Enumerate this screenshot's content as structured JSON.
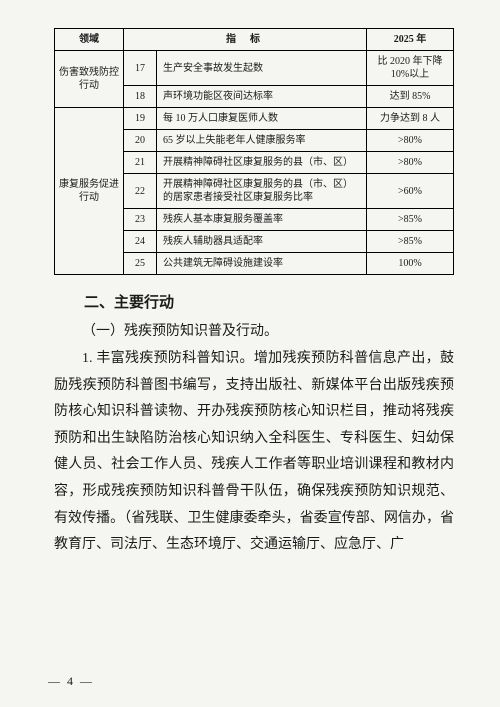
{
  "table": {
    "headers": [
      "领域",
      "指标",
      "2025 年"
    ],
    "rows": [
      {
        "num": "17",
        "ind": "生产安全事故发生起数",
        "target": "比 2020 年下降 10%以上"
      },
      {
        "num": "18",
        "ind": "声环境功能区夜间达标率",
        "target": "达到 85%"
      },
      {
        "num": "19",
        "ind": "每 10 万人口康复医师人数",
        "target": "力争达到 8 人"
      },
      {
        "num": "20",
        "ind": "65 岁以上失能老年人健康服务率",
        "target": ">80%"
      },
      {
        "num": "21",
        "ind": "开展精神障碍社区康复服务的县（市、区）",
        "target": ">80%"
      },
      {
        "num": "22",
        "ind": "开展精神障碍社区康复服务的县（市、区）的居家患者接受社区康复服务比率",
        "target": ">60%"
      },
      {
        "num": "23",
        "ind": "残疾人基本康复服务覆盖率",
        "target": ">85%"
      },
      {
        "num": "24",
        "ind": "残疾人辅助器具适配率",
        "target": ">85%"
      },
      {
        "num": "25",
        "ind": "公共建筑无障碍设施建设率",
        "target": "100%"
      }
    ],
    "domain1": "伤害致残防控行动",
    "domain2": "康复服务促进行动",
    "border_color": "#000000",
    "font_size_pt": 10
  },
  "section": {
    "h2": "二、主要行动",
    "sub": "（一）残疾预防知识普及行动。",
    "para": "1. 丰富残疾预防科普知识。增加残疾预防科普信息产出，鼓励残疾预防科普图书编写，支持出版社、新媒体平台出版残疾预防核心知识科普读物、开办残疾预防核心知识栏目，推动将残疾预防和出生缺陷防治核心知识纳入全科医生、专科医生、妇幼保健人员、社会工作人员、残疾人工作者等职业培训课程和教材内容，形成残疾预防知识科普骨干队伍，确保残疾预防知识规范、有效传播。（省残联、卫生健康委牵头，省委宣传部、网信办，省教育厅、司法厅、生态环境厅、交通运输厅、应急厅、广"
  },
  "page_number": "— 4 —",
  "colors": {
    "background": "#f5f5f2",
    "text": "#1a1a1a"
  }
}
